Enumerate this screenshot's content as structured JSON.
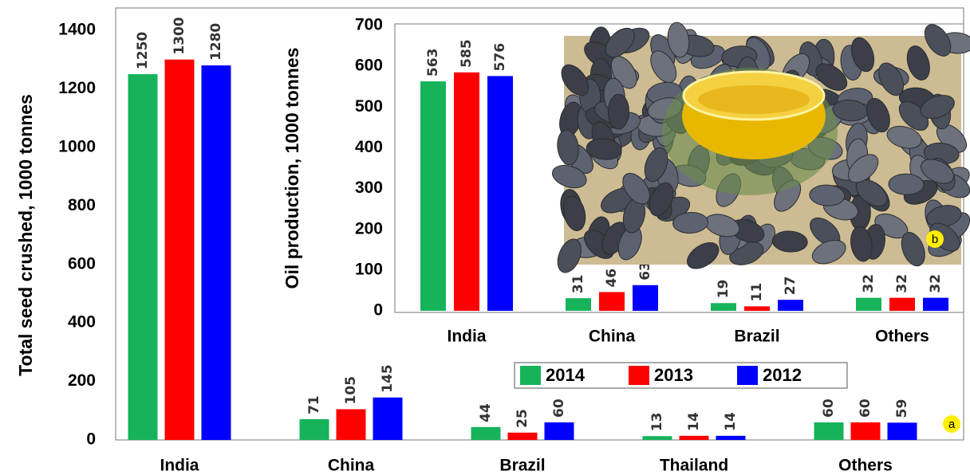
{
  "chart_data": [
    {
      "type": "bar",
      "label": "a",
      "ylabel": "Total seed crushed, 1000 tonnes",
      "categories": [
        "India",
        "China",
        "Brazil",
        "Thailand",
        "Others"
      ],
      "series": [
        {
          "name": "2014",
          "color": "#17b35b",
          "values": [
            1250,
            71,
            44,
            13,
            60
          ]
        },
        {
          "name": "2013",
          "color": "#ff0000",
          "values": [
            1300,
            105,
            25,
            14,
            60
          ]
        },
        {
          "name": "2012",
          "color": "#0000ff",
          "values": [
            1280,
            145,
            60,
            14,
            59
          ]
        }
      ],
      "ylim": [
        0,
        1400
      ],
      "yticks": [
        0,
        200,
        400,
        600,
        800,
        1000,
        1200,
        1400
      ]
    },
    {
      "type": "bar",
      "label": "b",
      "ylabel": "Oil production, 1000 tonnes",
      "categories": [
        "India",
        "China",
        "Brazil",
        "Others"
      ],
      "series": [
        {
          "color": "#17b35b",
          "values": [
            563,
            31,
            19,
            32
          ]
        },
        {
          "color": "#ff0000",
          "values": [
            585,
            46,
            11,
            32
          ]
        },
        {
          "color": "#0000ff",
          "values": [
            576,
            63,
            27,
            32
          ]
        }
      ],
      "ylim": [
        0,
        700
      ],
      "yticks": [
        0,
        100,
        200,
        300,
        400,
        500,
        600,
        700
      ]
    }
  ]
}
